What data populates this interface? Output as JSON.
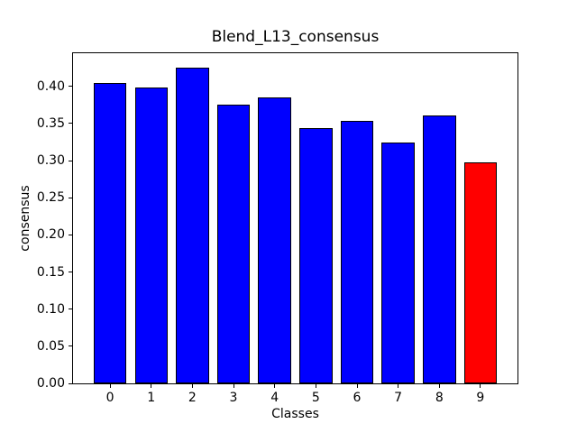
{
  "chart_data": {
    "type": "bar",
    "title": "Blend_L13_consensus",
    "xlabel": "Classes",
    "ylabel": "consensus",
    "categories": [
      "0",
      "1",
      "2",
      "3",
      "4",
      "5",
      "6",
      "7",
      "8",
      "9"
    ],
    "values": [
      0.405,
      0.399,
      0.425,
      0.375,
      0.385,
      0.344,
      0.354,
      0.325,
      0.361,
      0.298
    ],
    "bar_colors": [
      "#0000ff",
      "#0000ff",
      "#0000ff",
      "#0000ff",
      "#0000ff",
      "#0000ff",
      "#0000ff",
      "#0000ff",
      "#0000ff",
      "#ff0000"
    ],
    "edge_color": "#000000",
    "highlighted_category": "9",
    "bar_width": 0.8,
    "xlim": [
      -0.9,
      9.9
    ],
    "ylim": [
      0,
      0.4447
    ],
    "ytick_labels": [
      "0.00",
      "0.05",
      "0.10",
      "0.15",
      "0.20",
      "0.25",
      "0.30",
      "0.35",
      "0.40"
    ],
    "grid": false,
    "legend": false,
    "background_color": "#ffffff"
  }
}
